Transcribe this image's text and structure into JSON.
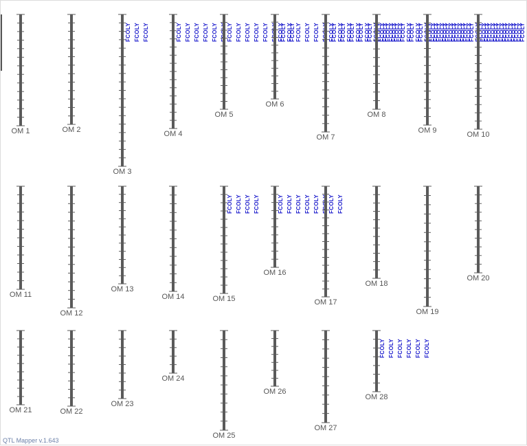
{
  "app": {
    "footer": "QTL Mapper v.1.643"
  },
  "colors": {
    "chromosome": "#5a5a5a",
    "tick": "#5a5a5a",
    "label": "#555555",
    "qtl": "#1a1acc"
  },
  "chromosomes": [
    {
      "name": "OM 1",
      "ticks": 12,
      "qtl_count": 0
    },
    {
      "name": "OM 2",
      "ticks": 12,
      "qtl_count": 0
    },
    {
      "name": "OM 3",
      "ticks": 17,
      "qtl_count": 3
    },
    {
      "name": "OM 4",
      "ticks": 13,
      "qtl_count": 6
    },
    {
      "name": "OM 5",
      "ticks": 11,
      "qtl_count": 8
    },
    {
      "name": "OM 6",
      "ticks": 10,
      "qtl_count": 14
    },
    {
      "name": "OM 7",
      "ticks": 13,
      "qtl_count": 16
    },
    {
      "name": "OM 8",
      "ticks": 10,
      "qtl_count": 16
    },
    {
      "name": "OM 9",
      "ticks": 12,
      "qtl_count": 16
    },
    {
      "name": "OM 10",
      "ticks": 13,
      "qtl_count": 16
    },
    {
      "name": "OM 11",
      "ticks": 11,
      "qtl_count": 0
    },
    {
      "name": "OM 12",
      "ticks": 13,
      "qtl_count": 0
    },
    {
      "name": "OM 13",
      "ticks": 11,
      "qtl_count": 0
    },
    {
      "name": "OM 14",
      "ticks": 11,
      "qtl_count": 0
    },
    {
      "name": "OM 15",
      "ticks": 12,
      "qtl_count": 4
    },
    {
      "name": "OM 16",
      "ticks": 9,
      "qtl_count": 6
    },
    {
      "name": "OM 17",
      "ticks": 13,
      "qtl_count": 2
    },
    {
      "name": "OM 18",
      "ticks": 10,
      "qtl_count": 0
    },
    {
      "name": "OM 19",
      "ticks": 12,
      "qtl_count": 0
    },
    {
      "name": "OM 20",
      "ticks": 9,
      "qtl_count": 0
    },
    {
      "name": "OM 21",
      "ticks": 8,
      "qtl_count": 0
    },
    {
      "name": "OM 22",
      "ticks": 8,
      "qtl_count": 0
    },
    {
      "name": "OM 23",
      "ticks": 7,
      "qtl_count": 0
    },
    {
      "name": "OM 24",
      "ticks": 4,
      "qtl_count": 0
    },
    {
      "name": "OM 25",
      "ticks": 10,
      "qtl_count": 0
    },
    {
      "name": "OM 26",
      "ticks": 6,
      "qtl_count": 0
    },
    {
      "name": "OM 27",
      "ticks": 9,
      "qtl_count": 0
    },
    {
      "name": "OM 28",
      "ticks": 6,
      "qtl_count": 6
    }
  ],
  "qtl_label": "FCOLY"
}
